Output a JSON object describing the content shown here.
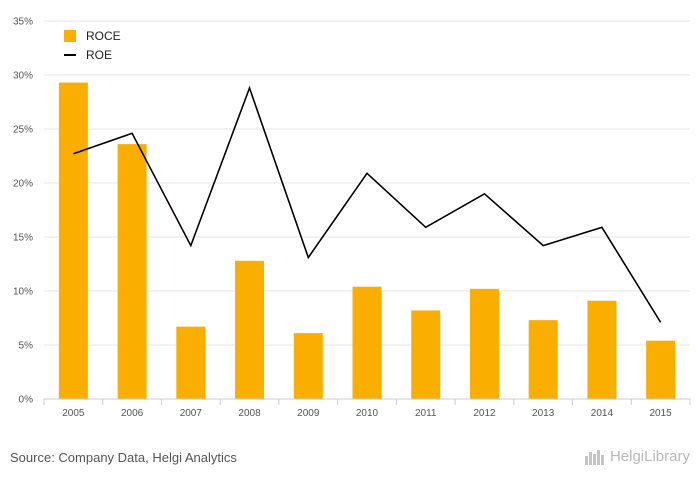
{
  "chart_data": {
    "type": "bar",
    "categories": [
      "2005",
      "2006",
      "2007",
      "2008",
      "2009",
      "2010",
      "2011",
      "2012",
      "2013",
      "2014",
      "2015"
    ],
    "series": [
      {
        "name": "ROCE",
        "type": "bar",
        "values": [
          29.3,
          23.6,
          6.7,
          12.8,
          6.1,
          10.4,
          8.2,
          10.2,
          7.3,
          9.1,
          5.4
        ]
      },
      {
        "name": "ROE",
        "type": "line",
        "values": [
          22.7,
          24.6,
          14.2,
          28.8,
          13.1,
          20.9,
          15.9,
          19.0,
          14.2,
          15.9,
          7.1
        ]
      }
    ],
    "ylim": [
      0,
      35
    ],
    "yticks": [
      0,
      5,
      10,
      15,
      20,
      25,
      30,
      35
    ],
    "ytick_labels": [
      "0%",
      "5%",
      "10%",
      "15%",
      "20%",
      "25%",
      "30%",
      "35%"
    ],
    "grid": true,
    "legend_position": "top-left",
    "colors": {
      "bar": "#F9AE00",
      "line": "#000000",
      "grid": "#e6e6e6",
      "axis": "#cccccc"
    }
  },
  "footer": {
    "source": "Source: Company Data, Helgi Analytics",
    "brand": "HelgiLibrary"
  }
}
